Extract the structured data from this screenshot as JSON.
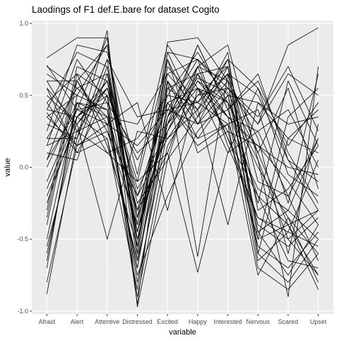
{
  "chart_data": {
    "type": "line",
    "title": "Laodings of F1 def.E.bare for dataset Cogito",
    "xlabel": "variable",
    "ylabel": "value",
    "categories": [
      "Afraid",
      "Alert",
      "Attentive",
      "Distressed",
      "Excited",
      "Happy",
      "Interested",
      "Nervous",
      "Scared",
      "Upset"
    ],
    "ylim": [
      -1.02,
      1.02
    ],
    "yticks": [
      {
        "value": 1.0,
        "label": "1.0"
      },
      {
        "value": 0.5,
        "label": "0.5"
      },
      {
        "value": 0.0,
        "label": "0.0"
      },
      {
        "value": -0.5,
        "label": "-0.5"
      },
      {
        "value": -1.0,
        "label": "-1.0"
      }
    ],
    "grid": true,
    "theme": "grey-panel",
    "line_color": "#000000",
    "series": [
      {
        "values": [
          0.76,
          0.9,
          0.9,
          -0.55,
          0.87,
          0.9,
          0.6,
          -0.6,
          -0.8,
          -0.5
        ]
      },
      {
        "values": [
          -0.88,
          0.2,
          0.95,
          -0.97,
          0.05,
          0.7,
          0.85,
          0.05,
          -0.9,
          0.7
        ]
      },
      {
        "values": [
          0.71,
          0.4,
          0.3,
          0.15,
          0.4,
          0.3,
          0.4,
          -0.2,
          -0.4,
          -0.3
        ]
      },
      {
        "values": [
          0.4,
          0.35,
          0.6,
          -0.45,
          0.35,
          0.62,
          0.52,
          0.1,
          -0.4,
          -0.85
        ]
      },
      {
        "values": [
          0.15,
          0.25,
          0.55,
          -0.3,
          0.5,
          0.45,
          0.3,
          -0.15,
          -0.3,
          0.2
        ]
      },
      {
        "values": [
          -0.7,
          0.5,
          0.85,
          -0.6,
          0.8,
          0.75,
          0.55,
          0.3,
          0.85,
          0.97
        ]
      },
      {
        "values": [
          0.4,
          0.8,
          0.7,
          -0.4,
          0.6,
          -0.62,
          0.65,
          0.5,
          0.05,
          -0.3
        ]
      },
      {
        "values": [
          -0.2,
          0.3,
          -0.5,
          0.25,
          0.2,
          0.4,
          0.8,
          -0.6,
          0.2,
          0.4
        ]
      },
      {
        "values": [
          0.55,
          0.1,
          0.2,
          -0.65,
          0.3,
          0.55,
          0.45,
          -0.7,
          -0.85,
          -0.6
        ]
      },
      {
        "values": [
          0.05,
          0.6,
          0.85,
          -0.35,
          0.65,
          0.4,
          -0.4,
          0.45,
          0.2,
          0.1
        ]
      },
      {
        "values": [
          -0.5,
          0.45,
          0.4,
          -0.8,
          0.25,
          0.7,
          0.2,
          -0.35,
          -0.5,
          -0.75
        ]
      },
      {
        "values": [
          0.35,
          0.15,
          0.3,
          0.45,
          -0.3,
          0.55,
          0.35,
          0.15,
          -0.1,
          -0.4
        ]
      },
      {
        "values": [
          -0.3,
          0.7,
          0.6,
          -0.2,
          0.45,
          0.2,
          0.5,
          -0.25,
          0.6,
          0.15
        ]
      },
      {
        "values": [
          0.6,
          0.25,
          0.1,
          -0.1,
          0.1,
          -0.73,
          0.1,
          0.55,
          -0.05,
          -0.2
        ]
      },
      {
        "values": [
          0.2,
          0.55,
          0.35,
          -0.7,
          0.55,
          0.65,
          0.7,
          -0.45,
          -0.3,
          -0.5
        ]
      },
      {
        "values": [
          -0.6,
          0.35,
          0.5,
          -0.5,
          0.35,
          0.85,
          0.4,
          0.65,
          0.05,
          -0.1
        ]
      },
      {
        "values": [
          0.1,
          0.05,
          0.65,
          -0.25,
          0.05,
          0.35,
          0.6,
          0.2,
          -0.6,
          0.3
        ]
      },
      {
        "values": [
          0.45,
          0.65,
          0.15,
          -0.55,
          0.75,
          0.1,
          0.25,
          -0.5,
          0.35,
          0.55
        ]
      },
      {
        "values": [
          -0.1,
          0.4,
          0.45,
          -0.9,
          0.15,
          0.5,
          0.7,
          -0.1,
          -0.2,
          -0.65
        ]
      },
      {
        "values": [
          0.3,
          0.2,
          0.75,
          0.35,
          0.4,
          0.75,
          0.15,
          -0.35,
          -0.45,
          0.05
        ]
      },
      {
        "values": [
          -0.4,
          0.6,
          0.25,
          -0.4,
          0.6,
          0.3,
          0.55,
          0.35,
          0.7,
          0.25
        ]
      },
      {
        "values": [
          0.5,
          0.3,
          0.55,
          -0.15,
          0.25,
          0.6,
          0.35,
          -0.55,
          -0.7,
          -0.45
        ]
      },
      {
        "values": [
          0.0,
          0.45,
          0.1,
          0.2,
          0.5,
          0.8,
          0.45,
          0.0,
          -0.35,
          -0.8
        ]
      },
      {
        "values": [
          -0.8,
          0.15,
          0.7,
          -0.65,
          0.7,
          0.45,
          0.75,
          0.55,
          0.15,
          0.45
        ]
      },
      {
        "values": [
          0.65,
          0.5,
          0.4,
          -0.75,
          -0.2,
          0.25,
          0.5,
          -0.4,
          -0.55,
          -0.35
        ]
      },
      {
        "values": [
          0.25,
          0.85,
          0.8,
          -0.05,
          0.85,
          0.55,
          0.1,
          0.25,
          0.4,
          0.0
        ]
      },
      {
        "values": [
          -0.25,
          0.35,
          0.2,
          -0.85,
          0.35,
          0.7,
          0.6,
          -0.65,
          -0.45,
          -0.55
        ]
      },
      {
        "values": [
          0.38,
          0.1,
          0.5,
          0.05,
          0.45,
          0.15,
          0.3,
          0.4,
          -0.25,
          0.65
        ]
      },
      {
        "values": [
          0.7,
          0.55,
          0.65,
          -0.45,
          0.55,
          0.4,
          0.65,
          0.1,
          0.55,
          -0.15
        ]
      },
      {
        "values": [
          -0.55,
          0.25,
          0.35,
          -0.3,
          0.1,
          0.65,
          0.2,
          -0.2,
          -0.65,
          -0.7
        ]
      },
      {
        "values": [
          0.15,
          0.75,
          0.45,
          0.1,
          0.3,
          0.85,
          0.4,
          0.6,
          0.1,
          -0.25
        ]
      },
      {
        "values": [
          0.05,
          0.4,
          0.9,
          -0.6,
          0.8,
          0.35,
          0.75,
          -0.3,
          -0.15,
          0.15
        ]
      },
      {
        "values": [
          0.45,
          0.15,
          0.25,
          -0.2,
          0.2,
          0.5,
          0.55,
          0.3,
          0.65,
          0.5
        ]
      },
      {
        "values": [
          -0.35,
          0.65,
          0.5,
          -0.95,
          0.6,
          0.2,
          0.3,
          -0.75,
          -0.35,
          -0.6
        ]
      },
      {
        "values": [
          0.55,
          0.3,
          0.6,
          -0.35,
          0.25,
          0.6,
          0.45,
          0.05,
          -0.5,
          -0.3
        ]
      },
      {
        "values": [
          -0.65,
          0.45,
          0.35,
          0.3,
          0.65,
          0.75,
          0.5,
          0.45,
          0.3,
          0.35
        ]
      },
      {
        "values": [
          0.2,
          0.2,
          0.75,
          -0.5,
          0.4,
          0.45,
          0.65,
          -0.45,
          -0.75,
          -0.4
        ]
      },
      {
        "values": [
          0.6,
          0.6,
          0.3,
          -0.7,
          0.45,
          0.55,
          0.25,
          0.15,
          0.0,
          -0.05
        ]
      },
      {
        "values": [
          -0.15,
          0.35,
          0.55,
          -0.1,
          0.75,
          0.3,
          0.7,
          -0.5,
          -0.4,
          -0.75
        ]
      },
      {
        "values": [
          0.35,
          0.5,
          0.4,
          -0.45,
          0.3,
          0.65,
          0.35,
          0.25,
          -0.2,
          0.2
        ]
      }
    ]
  }
}
